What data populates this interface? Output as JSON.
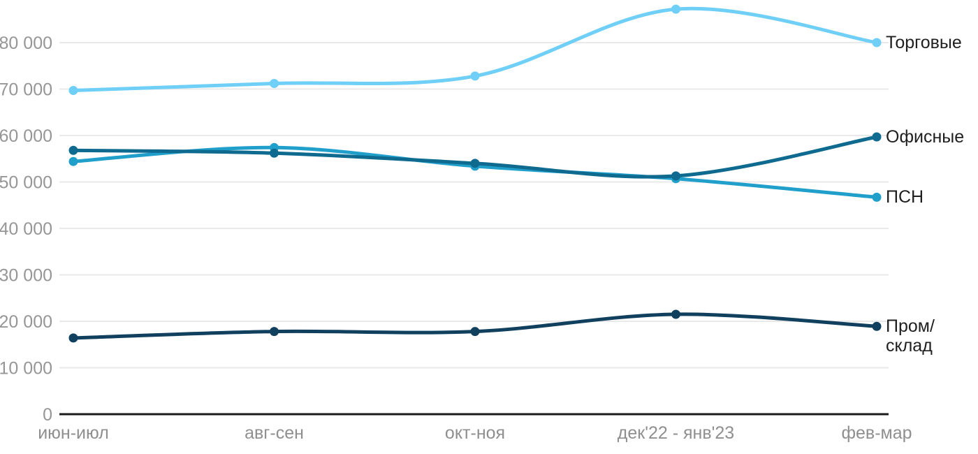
{
  "chart_data": {
    "type": "line",
    "categories": [
      "июн-июл",
      "авг-сен",
      "окт-ноя",
      "дек'22 - янв'23",
      "фев-мар"
    ],
    "series": [
      {
        "name": "Торговые",
        "color": "#6FCFF7",
        "values": [
          69700,
          71200,
          72800,
          87200,
          80000
        ]
      },
      {
        "name": "Офисные",
        "color": "#0F6A8F",
        "values": [
          56800,
          56200,
          54000,
          51300,
          59700
        ]
      },
      {
        "name": "ПСН",
        "color": "#219FCB",
        "values": [
          54400,
          57400,
          53400,
          50700,
          46700
        ]
      },
      {
        "name": "Пром/склад",
        "color": "#11405E",
        "values": [
          16400,
          17800,
          17800,
          21500,
          18900
        ],
        "label_lines": [
          "Пром/",
          "склад"
        ]
      }
    ],
    "ylim": [
      0,
      90000
    ],
    "yticks": [
      0,
      10000,
      20000,
      30000,
      40000,
      50000,
      60000,
      70000,
      80000
    ],
    "ytick_labels": [
      "0",
      "10 000",
      "20 000",
      "30 000",
      "40 000",
      "50 000",
      "60 000",
      "70 000",
      "80 000"
    ],
    "grid": true,
    "legend_position": "right-of-line-end",
    "draw_order": [
      0,
      2,
      1,
      3
    ],
    "axis_color": "#1a1a1a",
    "grid_color": "#e9e9e9"
  }
}
